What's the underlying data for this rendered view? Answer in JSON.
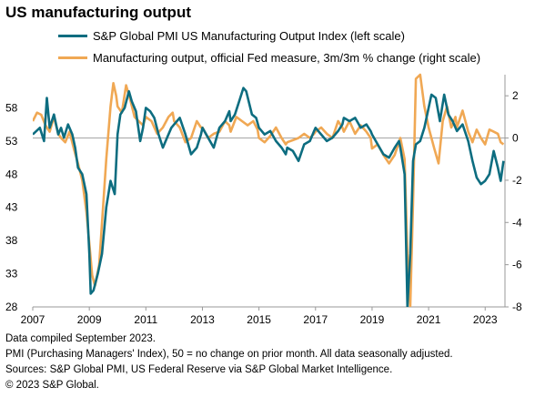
{
  "chart_data": {
    "type": "line",
    "title": "US manufacturing output",
    "series": [
      {
        "name": "S&P Global PMI US Manufacturing Output Index (left scale)",
        "axis": "left",
        "color": "#0d6d80",
        "points": [
          [
            2007.0,
            54.0
          ],
          [
            2007.25,
            55.0
          ],
          [
            2007.4,
            53.0
          ],
          [
            2007.5,
            59.5
          ],
          [
            2007.6,
            55.0
          ],
          [
            2007.75,
            57.0
          ],
          [
            2007.9,
            54.0
          ],
          [
            2008.0,
            55.0
          ],
          [
            2008.1,
            53.5
          ],
          [
            2008.25,
            55.5
          ],
          [
            2008.4,
            54.0
          ],
          [
            2008.5,
            52.0
          ],
          [
            2008.6,
            49.0
          ],
          [
            2008.75,
            48.0
          ],
          [
            2008.9,
            45.0
          ],
          [
            2009.0,
            36.0
          ],
          [
            2009.05,
            30.0
          ],
          [
            2009.15,
            30.5
          ],
          [
            2009.3,
            33.0
          ],
          [
            2009.45,
            36.0
          ],
          [
            2009.6,
            43.0
          ],
          [
            2009.75,
            47.0
          ],
          [
            2009.9,
            45.0
          ],
          [
            2010.0,
            54.0
          ],
          [
            2010.1,
            57.0
          ],
          [
            2010.25,
            58.0
          ],
          [
            2010.4,
            60.5
          ],
          [
            2010.5,
            59.0
          ],
          [
            2010.65,
            57.5
          ],
          [
            2010.8,
            53.0
          ],
          [
            2010.9,
            55.0
          ],
          [
            2011.0,
            58.0
          ],
          [
            2011.15,
            57.5
          ],
          [
            2011.3,
            56.5
          ],
          [
            2011.45,
            54.0
          ],
          [
            2011.6,
            52.0
          ],
          [
            2011.75,
            53.5
          ],
          [
            2011.9,
            55.0
          ],
          [
            2012.0,
            55.5
          ],
          [
            2012.2,
            56.5
          ],
          [
            2012.4,
            54.0
          ],
          [
            2012.6,
            51.0
          ],
          [
            2012.8,
            52.0
          ],
          [
            2012.95,
            54.0
          ],
          [
            2013.0,
            55.0
          ],
          [
            2013.2,
            53.5
          ],
          [
            2013.4,
            52.0
          ],
          [
            2013.6,
            55.0
          ],
          [
            2013.8,
            56.0
          ],
          [
            2013.95,
            57.5
          ],
          [
            2014.0,
            56.0
          ],
          [
            2014.15,
            57.0
          ],
          [
            2014.3,
            59.0
          ],
          [
            2014.45,
            61.0
          ],
          [
            2014.55,
            60.5
          ],
          [
            2014.75,
            57.0
          ],
          [
            2014.9,
            56.5
          ],
          [
            2015.0,
            55.0
          ],
          [
            2015.2,
            54.0
          ],
          [
            2015.4,
            54.5
          ],
          [
            2015.6,
            53.0
          ],
          [
            2015.8,
            52.0
          ],
          [
            2015.95,
            51.0
          ],
          [
            2016.0,
            52.0
          ],
          [
            2016.2,
            51.5
          ],
          [
            2016.4,
            50.0
          ],
          [
            2016.6,
            52.5
          ],
          [
            2016.8,
            53.0
          ],
          [
            2016.95,
            54.5
          ],
          [
            2017.0,
            55.0
          ],
          [
            2017.2,
            54.0
          ],
          [
            2017.4,
            53.0
          ],
          [
            2017.6,
            53.5
          ],
          [
            2017.8,
            54.5
          ],
          [
            2017.95,
            55.5
          ],
          [
            2018.0,
            56.5
          ],
          [
            2018.2,
            56.0
          ],
          [
            2018.4,
            56.5
          ],
          [
            2018.6,
            55.0
          ],
          [
            2018.8,
            55.5
          ],
          [
            2018.95,
            54.5
          ],
          [
            2019.0,
            54.0
          ],
          [
            2019.2,
            52.5
          ],
          [
            2019.4,
            51.0
          ],
          [
            2019.6,
            50.5
          ],
          [
            2019.8,
            52.0
          ],
          [
            2019.95,
            53.0
          ],
          [
            2020.0,
            52.0
          ],
          [
            2020.15,
            48.0
          ],
          [
            2020.25,
            28.0
          ],
          [
            2020.35,
            36.0
          ],
          [
            2020.45,
            50.0
          ],
          [
            2020.55,
            52.5
          ],
          [
            2020.7,
            53.0
          ],
          [
            2020.85,
            55.0
          ],
          [
            2021.0,
            58.0
          ],
          [
            2021.1,
            60.0
          ],
          [
            2021.25,
            59.5
          ],
          [
            2021.4,
            56.0
          ],
          [
            2021.55,
            60.0
          ],
          [
            2021.7,
            57.0
          ],
          [
            2021.85,
            56.0
          ],
          [
            2022.0,
            54.5
          ],
          [
            2022.2,
            55.5
          ],
          [
            2022.4,
            53.0
          ],
          [
            2022.55,
            50.0
          ],
          [
            2022.7,
            47.5
          ],
          [
            2022.85,
            46.5
          ],
          [
            2023.0,
            47.0
          ],
          [
            2023.15,
            48.0
          ],
          [
            2023.3,
            51.5
          ],
          [
            2023.45,
            49.0
          ],
          [
            2023.55,
            47.0
          ],
          [
            2023.65,
            50.0
          ]
        ]
      },
      {
        "name": "Manufacturing output, official Fed measure, 3m/3m % change (right scale)",
        "axis": "right",
        "color": "#f0a854",
        "points": [
          [
            2007.0,
            0.8
          ],
          [
            2007.15,
            1.2
          ],
          [
            2007.3,
            1.1
          ],
          [
            2007.45,
            0.6
          ],
          [
            2007.6,
            0.3
          ],
          [
            2007.75,
            1.0
          ],
          [
            2007.9,
            0.2
          ],
          [
            2008.0,
            0.0
          ],
          [
            2008.15,
            -0.2
          ],
          [
            2008.3,
            0.3
          ],
          [
            2008.45,
            -0.5
          ],
          [
            2008.6,
            -1.2
          ],
          [
            2008.75,
            -2.0
          ],
          [
            2008.9,
            -3.5
          ],
          [
            2009.0,
            -5.0
          ],
          [
            2009.1,
            -6.5
          ],
          [
            2009.2,
            -7.0
          ],
          [
            2009.35,
            -6.0
          ],
          [
            2009.5,
            -3.0
          ],
          [
            2009.6,
            -1.0
          ],
          [
            2009.75,
            1.5
          ],
          [
            2009.85,
            2.6
          ],
          [
            2009.95,
            2.0
          ],
          [
            2010.0,
            1.5
          ],
          [
            2010.15,
            1.2
          ],
          [
            2010.3,
            2.5
          ],
          [
            2010.45,
            1.8
          ],
          [
            2010.6,
            1.0
          ],
          [
            2010.75,
            0.8
          ],
          [
            2010.9,
            0.6
          ],
          [
            2011.0,
            1.0
          ],
          [
            2011.2,
            0.8
          ],
          [
            2011.4,
            0.2
          ],
          [
            2011.6,
            0.5
          ],
          [
            2011.8,
            1.0
          ],
          [
            2011.95,
            1.2
          ],
          [
            2012.0,
            0.8
          ],
          [
            2012.2,
            0.5
          ],
          [
            2012.4,
            -0.2
          ],
          [
            2012.6,
            0.0
          ],
          [
            2012.8,
            0.8
          ],
          [
            2012.95,
            0.5
          ],
          [
            2013.0,
            0.5
          ],
          [
            2013.2,
            0.0
          ],
          [
            2013.4,
            0.2
          ],
          [
            2013.6,
            0.3
          ],
          [
            2013.8,
            0.8
          ],
          [
            2013.95,
            0.6
          ],
          [
            2014.0,
            0.3
          ],
          [
            2014.2,
            1.0
          ],
          [
            2014.4,
            0.8
          ],
          [
            2014.6,
            0.6
          ],
          [
            2014.8,
            0.8
          ],
          [
            2014.95,
            0.4
          ],
          [
            2015.0,
            0.0
          ],
          [
            2015.2,
            -0.2
          ],
          [
            2015.4,
            0.1
          ],
          [
            2015.6,
            0.5
          ],
          [
            2015.8,
            0.0
          ],
          [
            2015.95,
            -0.3
          ],
          [
            2016.0,
            -0.2
          ],
          [
            2016.2,
            -0.1
          ],
          [
            2016.4,
            0.0
          ],
          [
            2016.6,
            0.2
          ],
          [
            2016.8,
            0.0
          ],
          [
            2016.95,
            0.2
          ],
          [
            2017.0,
            0.3
          ],
          [
            2017.2,
            0.5
          ],
          [
            2017.4,
            0.2
          ],
          [
            2017.6,
            0.0
          ],
          [
            2017.8,
            0.8
          ],
          [
            2017.95,
            0.5
          ],
          [
            2018.0,
            0.3
          ],
          [
            2018.2,
            0.8
          ],
          [
            2018.4,
            0.2
          ],
          [
            2018.6,
            0.6
          ],
          [
            2018.8,
            0.3
          ],
          [
            2018.95,
            0.0
          ],
          [
            2019.0,
            -0.5
          ],
          [
            2019.2,
            -0.3
          ],
          [
            2019.4,
            -0.8
          ],
          [
            2019.6,
            -1.2
          ],
          [
            2019.8,
            -0.8
          ],
          [
            2019.95,
            -0.2
          ],
          [
            2020.0,
            0.0
          ],
          [
            2020.15,
            -1.0
          ],
          [
            2020.25,
            -5.5
          ],
          [
            2020.35,
            -8.0
          ],
          [
            2020.45,
            -3.0
          ],
          [
            2020.55,
            2.8
          ],
          [
            2020.7,
            3.0
          ],
          [
            2020.85,
            1.5
          ],
          [
            2021.0,
            0.5
          ],
          [
            2021.2,
            -0.5
          ],
          [
            2021.35,
            -1.2
          ],
          [
            2021.5,
            0.8
          ],
          [
            2021.65,
            1.5
          ],
          [
            2021.8,
            0.5
          ],
          [
            2021.95,
            1.0
          ],
          [
            2022.0,
            0.5
          ],
          [
            2022.2,
            1.3
          ],
          [
            2022.4,
            0.3
          ],
          [
            2022.55,
            -0.2
          ],
          [
            2022.7,
            0.4
          ],
          [
            2022.85,
            0.0
          ],
          [
            2023.0,
            -0.3
          ],
          [
            2023.15,
            0.4
          ],
          [
            2023.3,
            0.3
          ],
          [
            2023.45,
            0.2
          ],
          [
            2023.55,
            -0.2
          ],
          [
            2023.65,
            -0.3
          ]
        ]
      }
    ],
    "y_left": {
      "ylim": [
        28,
        63
      ],
      "ticks": [
        28,
        33,
        38,
        43,
        48,
        53,
        58
      ]
    },
    "y_right": {
      "ylim": [
        -8,
        3
      ],
      "ticks": [
        -8,
        -6,
        -4,
        -2,
        0,
        2
      ]
    },
    "x": {
      "xlim": [
        2007,
        2023.7
      ],
      "ticks": [
        2007,
        2009,
        2011,
        2013,
        2015,
        2017,
        2019,
        2021,
        2023
      ]
    },
    "reference_line_right": 0,
    "legend_position": "top"
  },
  "footnotes": [
    "Data compiled September 2023.",
    "PMI (Purchasing Managers' Index), 50 = no change on prior month. All data seasonally adjusted.",
    "Sources: S&P Global PMI, US Federal Reserve via S&P Global Market Intelligence.",
    "© 2023 S&P Global."
  ]
}
